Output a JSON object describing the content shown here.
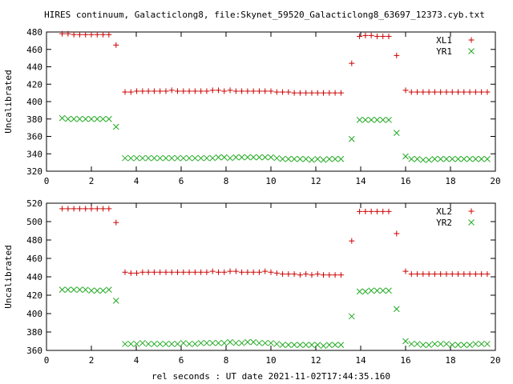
{
  "title": "HIRES continuum, Galacticlong8, file:Skynet_59520_Galacticlong8_63697_12373.cyb.txt",
  "xlabel": "rel seconds : UT date 2021-11-02T17:44:35.160",
  "colors": {
    "red": "#cc0000",
    "green": "#22aa22",
    "axis": "#000000"
  },
  "chart_data": [
    {
      "type": "scatter",
      "ylabel": "Uncalibrated",
      "xlim": [
        0,
        20
      ],
      "ylim": [
        320,
        480
      ],
      "xticks": [
        0,
        2,
        4,
        6,
        8,
        10,
        12,
        14,
        16,
        18,
        20
      ],
      "yticks": [
        320,
        340,
        360,
        380,
        400,
        420,
        440,
        460,
        480
      ],
      "legend_position": "top-right",
      "series": [
        {
          "name": "XL1",
          "marker": "plus",
          "color": "#cc0000",
          "x": [
            0.7,
            0.96,
            1.22,
            1.48,
            1.74,
            2.0,
            2.26,
            2.52,
            2.78,
            3.1,
            3.5,
            3.76,
            4.02,
            4.28,
            4.54,
            4.8,
            5.06,
            5.32,
            5.58,
            5.84,
            6.1,
            6.36,
            6.62,
            6.88,
            7.14,
            7.4,
            7.66,
            7.92,
            8.18,
            8.44,
            8.7,
            8.96,
            9.22,
            9.48,
            9.74,
            10.0,
            10.26,
            10.52,
            10.78,
            11.04,
            11.3,
            11.56,
            11.82,
            12.08,
            12.34,
            12.6,
            12.86,
            13.12,
            13.6,
            13.95,
            14.21,
            14.47,
            14.73,
            14.99,
            15.25,
            15.6,
            16.0,
            16.26,
            16.52,
            16.78,
            17.04,
            17.3,
            17.56,
            17.82,
            18.08,
            18.34,
            18.6,
            18.86,
            19.12,
            19.38,
            19.64
          ],
          "y": [
            478,
            478,
            477,
            477,
            477,
            477,
            477,
            477,
            477,
            465,
            411,
            411,
            412,
            412,
            412,
            412,
            412,
            412,
            413,
            412,
            412,
            412,
            412,
            412,
            412,
            413,
            413,
            412,
            413,
            412,
            412,
            412,
            412,
            412,
            412,
            412,
            411,
            411,
            411,
            410,
            410,
            410,
            410,
            410,
            410,
            410,
            410,
            410,
            444,
            475,
            476,
            476,
            475,
            475,
            475,
            453,
            413,
            411,
            411,
            411,
            411,
            411,
            411,
            411,
            411,
            411,
            411,
            411,
            411,
            411,
            411
          ]
        },
        {
          "name": "YR1",
          "marker": "cross",
          "color": "#22aa22",
          "x": [
            0.7,
            0.96,
            1.22,
            1.48,
            1.74,
            2.0,
            2.26,
            2.52,
            2.78,
            3.1,
            3.5,
            3.76,
            4.02,
            4.28,
            4.54,
            4.8,
            5.06,
            5.32,
            5.58,
            5.84,
            6.1,
            6.36,
            6.62,
            6.88,
            7.14,
            7.4,
            7.66,
            7.92,
            8.18,
            8.44,
            8.7,
            8.96,
            9.22,
            9.48,
            9.74,
            10.0,
            10.26,
            10.52,
            10.78,
            11.04,
            11.3,
            11.56,
            11.82,
            12.08,
            12.34,
            12.6,
            12.86,
            13.12,
            13.6,
            13.95,
            14.21,
            14.47,
            14.73,
            14.99,
            15.25,
            15.6,
            16.0,
            16.26,
            16.52,
            16.78,
            17.04,
            17.3,
            17.56,
            17.82,
            18.08,
            18.34,
            18.6,
            18.86,
            19.12,
            19.38,
            19.64
          ],
          "y": [
            381,
            380,
            380,
            380,
            380,
            380,
            380,
            380,
            380,
            371,
            335,
            335,
            335,
            335,
            335,
            335,
            335,
            335,
            335,
            335,
            335,
            335,
            335,
            335,
            335,
            335,
            336,
            336,
            335,
            336,
            336,
            336,
            336,
            336,
            336,
            336,
            335,
            334,
            334,
            334,
            334,
            334,
            333,
            334,
            333,
            334,
            334,
            334,
            357,
            379,
            379,
            379,
            379,
            379,
            379,
            364,
            337,
            334,
            334,
            333,
            333,
            334,
            334,
            334,
            334,
            334,
            334,
            334,
            334,
            334,
            334
          ]
        }
      ]
    },
    {
      "type": "scatter",
      "ylabel": "Uncalibrated",
      "xlim": [
        0,
        20
      ],
      "ylim": [
        360,
        520
      ],
      "xticks": [
        0,
        2,
        4,
        6,
        8,
        10,
        12,
        14,
        16,
        18,
        20
      ],
      "yticks": [
        360,
        380,
        400,
        420,
        440,
        460,
        480,
        500,
        520
      ],
      "legend_position": "top-right",
      "series": [
        {
          "name": "XL2",
          "marker": "plus",
          "color": "#cc0000",
          "x": [
            0.7,
            0.96,
            1.22,
            1.48,
            1.74,
            2.0,
            2.26,
            2.52,
            2.78,
            3.1,
            3.5,
            3.76,
            4.02,
            4.28,
            4.54,
            4.8,
            5.06,
            5.32,
            5.58,
            5.84,
            6.1,
            6.36,
            6.62,
            6.88,
            7.14,
            7.4,
            7.66,
            7.92,
            8.18,
            8.44,
            8.7,
            8.96,
            9.22,
            9.48,
            9.74,
            10.0,
            10.26,
            10.52,
            10.78,
            11.04,
            11.3,
            11.56,
            11.82,
            12.08,
            12.34,
            12.6,
            12.86,
            13.12,
            13.6,
            13.95,
            14.21,
            14.47,
            14.73,
            14.99,
            15.25,
            15.6,
            16.0,
            16.26,
            16.52,
            16.78,
            17.04,
            17.3,
            17.56,
            17.82,
            18.08,
            18.34,
            18.6,
            18.86,
            19.12,
            19.38,
            19.64
          ],
          "y": [
            514,
            514,
            514,
            514,
            514,
            514,
            514,
            514,
            514,
            499,
            445,
            444,
            444,
            445,
            445,
            445,
            445,
            445,
            445,
            445,
            445,
            445,
            445,
            445,
            445,
            446,
            445,
            445,
            446,
            446,
            445,
            445,
            445,
            445,
            446,
            445,
            444,
            443,
            443,
            443,
            442,
            443,
            442,
            443,
            442,
            442,
            442,
            442,
            479,
            511,
            511,
            511,
            511,
            511,
            511,
            487,
            446,
            443,
            443,
            443,
            443,
            443,
            443,
            443,
            443,
            443,
            443,
            443,
            443,
            443,
            443
          ]
        },
        {
          "name": "YR2",
          "marker": "cross",
          "color": "#22aa22",
          "x": [
            0.7,
            0.96,
            1.22,
            1.48,
            1.74,
            2.0,
            2.26,
            2.52,
            2.78,
            3.1,
            3.5,
            3.76,
            4.02,
            4.28,
            4.54,
            4.8,
            5.06,
            5.32,
            5.58,
            5.84,
            6.1,
            6.36,
            6.62,
            6.88,
            7.14,
            7.4,
            7.66,
            7.92,
            8.18,
            8.44,
            8.7,
            8.96,
            9.22,
            9.48,
            9.74,
            10.0,
            10.26,
            10.52,
            10.78,
            11.04,
            11.3,
            11.56,
            11.82,
            12.08,
            12.34,
            12.6,
            12.86,
            13.12,
            13.6,
            13.95,
            14.21,
            14.47,
            14.73,
            14.99,
            15.25,
            15.6,
            16.0,
            16.26,
            16.52,
            16.78,
            17.04,
            17.3,
            17.56,
            17.82,
            18.08,
            18.34,
            18.6,
            18.86,
            19.12,
            19.38,
            19.64
          ],
          "y": [
            426,
            426,
            426,
            426,
            426,
            425,
            425,
            425,
            426,
            414,
            367,
            367,
            367,
            368,
            367,
            367,
            367,
            367,
            367,
            367,
            368,
            367,
            367,
            368,
            368,
            368,
            368,
            368,
            369,
            368,
            368,
            369,
            369,
            368,
            368,
            368,
            367,
            366,
            366,
            366,
            366,
            366,
            366,
            366,
            365,
            366,
            366,
            366,
            397,
            424,
            424,
            425,
            425,
            425,
            425,
            405,
            370,
            367,
            367,
            366,
            366,
            367,
            367,
            367,
            366,
            366,
            366,
            366,
            367,
            367,
            367
          ]
        }
      ]
    }
  ]
}
